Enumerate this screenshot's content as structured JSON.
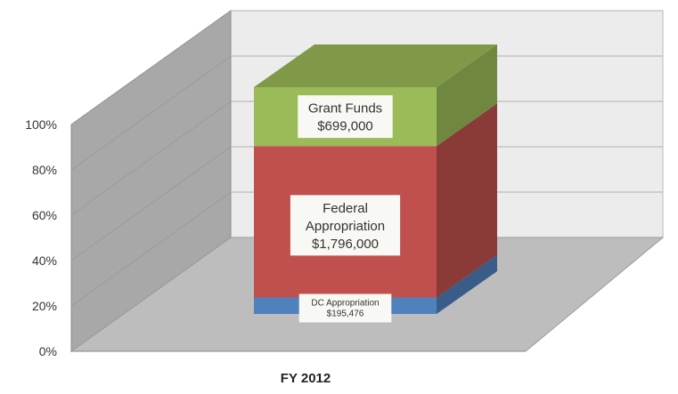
{
  "chart_data": {
    "type": "bar",
    "stacked": true,
    "normalized": true,
    "three_d": true,
    "grid": true,
    "categories": [
      "FY 2012"
    ],
    "series": [
      {
        "name": "DC Appropriation",
        "value_label": "$195,476",
        "values": [
          195476
        ],
        "color": "#4f81bd"
      },
      {
        "name": "Federal Appropriation",
        "value_label": "$1,796,000",
        "values": [
          1796000
        ],
        "color": "#c0504d"
      },
      {
        "name": "Grant Funds",
        "value_label": "$699,000",
        "values": [
          699000
        ],
        "color": "#9bbb59"
      }
    ],
    "data_labels": [
      {
        "lines": [
          "DC Appropriation",
          "$195,476"
        ]
      },
      {
        "lines": [
          "Federal",
          "Appropriation",
          "$1,796,000"
        ]
      },
      {
        "lines": [
          "Grant Funds",
          "$699,000"
        ]
      }
    ],
    "yticks": [
      "0%",
      "20%",
      "40%",
      "60%",
      "80%",
      "100%"
    ],
    "ylim": [
      0,
      100
    ]
  }
}
